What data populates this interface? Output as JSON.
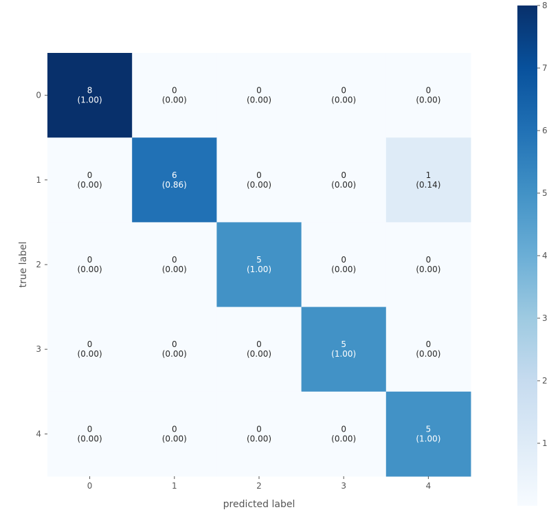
{
  "chart_data": {
    "type": "heatmap",
    "title": "",
    "xlabel": "predicted label",
    "ylabel": "true label",
    "x_categories": [
      "0",
      "1",
      "2",
      "3",
      "4"
    ],
    "y_categories": [
      "0",
      "1",
      "2",
      "3",
      "4"
    ],
    "matrix": [
      [
        8,
        0,
        0,
        0,
        0
      ],
      [
        0,
        6,
        0,
        0,
        1
      ],
      [
        0,
        0,
        5,
        0,
        0
      ],
      [
        0,
        0,
        0,
        5,
        0
      ],
      [
        0,
        0,
        0,
        0,
        5
      ]
    ],
    "cell_labels": [
      [
        [
          "8",
          "(1.00)"
        ],
        [
          "0",
          "(0.00)"
        ],
        [
          "0",
          "(0.00)"
        ],
        [
          "0",
          "(0.00)"
        ],
        [
          "0",
          "(0.00)"
        ]
      ],
      [
        [
          "0",
          "(0.00)"
        ],
        [
          "6",
          "(0.86)"
        ],
        [
          "0",
          "(0.00)"
        ],
        [
          "0",
          "(0.00)"
        ],
        [
          "1",
          "(0.14)"
        ]
      ],
      [
        [
          "0",
          "(0.00)"
        ],
        [
          "0",
          "(0.00)"
        ],
        [
          "5",
          "(1.00)"
        ],
        [
          "0",
          "(0.00)"
        ],
        [
          "0",
          "(0.00)"
        ]
      ],
      [
        [
          "0",
          "(0.00)"
        ],
        [
          "0",
          "(0.00)"
        ],
        [
          "0",
          "(0.00)"
        ],
        [
          "5",
          "(1.00)"
        ],
        [
          "0",
          "(0.00)"
        ]
      ],
      [
        [
          "0",
          "(0.00)"
        ],
        [
          "0",
          "(0.00)"
        ],
        [
          "0",
          "(0.00)"
        ],
        [
          "0",
          "(0.00)"
        ],
        [
          "5",
          "(1.00)"
        ]
      ]
    ],
    "colorbar": {
      "min": 0,
      "max": 8,
      "ticks": [
        "1",
        "2",
        "3",
        "4",
        "5",
        "6",
        "7",
        "8"
      ],
      "colormap": "Blues"
    },
    "grid": false,
    "colors": {
      "low": "#f7fbff",
      "high": "#08306b",
      "text_dark": "#262626",
      "text_light": "#ffffff"
    }
  }
}
